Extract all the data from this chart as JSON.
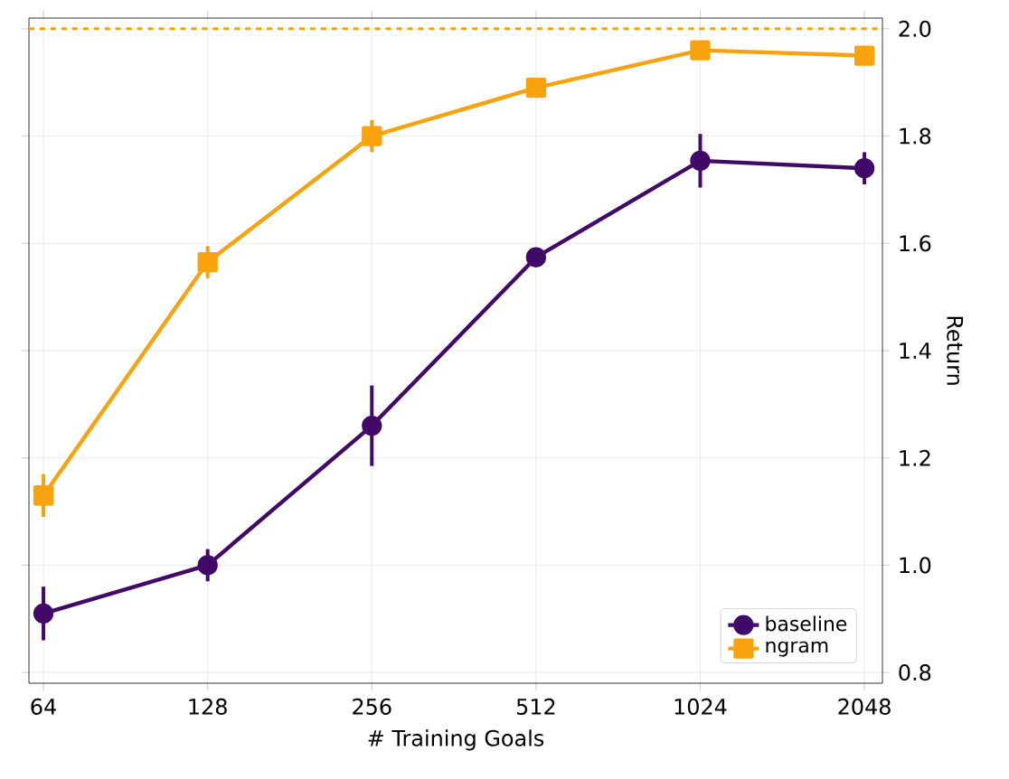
{
  "chart_data": {
    "type": "line",
    "xlabel": "# Training Goals",
    "ylabel": "Return",
    "x": [
      64,
      128,
      256,
      512,
      1024,
      2048
    ],
    "log": "x",
    "xlim": [
      60.2,
      2210
    ],
    "xticks": [
      64,
      128,
      256,
      512,
      1024,
      2048
    ],
    "ylim": [
      0.78,
      2.02
    ],
    "yticks": [
      {
        "value": 0.8,
        "label": "0.8"
      },
      {
        "value": 1.0,
        "label": "1.0"
      },
      {
        "value": 1.2,
        "label": "1.2"
      },
      {
        "value": 1.4,
        "label": "1.4"
      },
      {
        "value": 1.6,
        "label": "1.6"
      },
      {
        "value": 1.8,
        "label": "1.8"
      },
      {
        "value": 2.0,
        "label": "2.0"
      }
    ],
    "series": [
      {
        "name": "baseline",
        "color": "#420a68",
        "marker": "circle",
        "values": [
          0.91,
          1.0,
          1.26,
          1.574,
          1.754,
          1.74
        ],
        "errors": [
          0.05,
          0.03,
          0.075,
          0.01,
          0.05,
          0.03
        ]
      },
      {
        "name": "ngram",
        "color": "#f8a30e",
        "marker": "square",
        "values": [
          1.13,
          1.565,
          1.8,
          1.89,
          1.96,
          1.95
        ],
        "errors": [
          0.04,
          0.03,
          0.03,
          0.01,
          0.01,
          0.01
        ]
      }
    ],
    "ref_lines": [
      {
        "axis": "y",
        "value": 2.0,
        "color": "#f8a30e",
        "line_style": "dashed"
      }
    ],
    "grid": true,
    "legend": "bottom right",
    "line_style": "solid"
  }
}
